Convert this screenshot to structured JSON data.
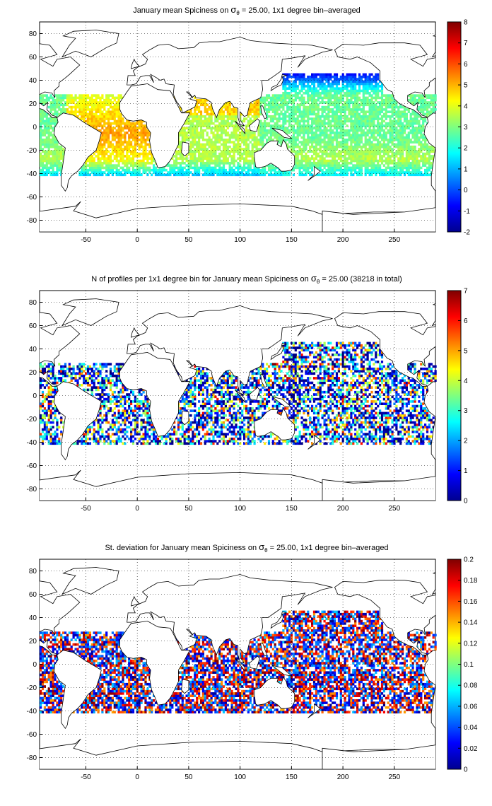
{
  "chart_data": [
    {
      "type": "heatmap",
      "title": "January mean Spiciness on σ_θ = 25.00, 1x1 degree bin–averaged",
      "title_parts": {
        "before": "January mean Spiciness on ",
        "sym": "σ",
        "sub": "θ",
        "after": " = 25.00, 1x1 degree bin–averaged"
      },
      "xlim": [
        -95,
        290
      ],
      "ylim": [
        -90,
        90
      ],
      "xticks": [
        -50,
        0,
        50,
        100,
        150,
        200,
        250
      ],
      "yticks": [
        80,
        60,
        40,
        20,
        0,
        -20,
        -40,
        -60,
        -80
      ],
      "grid": true,
      "colorbar": {
        "min": -2,
        "max": 8,
        "ticks": [
          8,
          7,
          6,
          5,
          4,
          3,
          2,
          1,
          0,
          -1,
          -2
        ]
      }
    },
    {
      "type": "heatmap",
      "title": "N of profiles per 1x1 degree bin for January mean Spiciness on σ_θ = 25.00 (38218 in total)",
      "title_parts": {
        "before": "N of profiles per 1x1 degree bin for January mean Spiciness on ",
        "sym": "σ",
        "sub": "θ",
        "after": " = 25.00 (38218 in total)"
      },
      "total_profiles": 38218,
      "xlim": [
        -95,
        290
      ],
      "ylim": [
        -90,
        90
      ],
      "xticks": [
        -50,
        0,
        50,
        100,
        150,
        200,
        250
      ],
      "yticks": [
        80,
        60,
        40,
        20,
        0,
        -20,
        -40,
        -60,
        -80
      ],
      "grid": true,
      "colorbar": {
        "min": 0,
        "max": 7,
        "ticks": [
          7,
          6,
          5,
          4,
          3,
          2,
          1,
          0
        ]
      }
    },
    {
      "type": "heatmap",
      "title": "St. deviation for January mean Spiciness on σ_θ = 25.00, 1x1 degree bin–averaged",
      "title_parts": {
        "before": "St. deviation for January mean Spiciness on ",
        "sym": "σ",
        "sub": "θ",
        "after": " = 25.00, 1x1 degree bin–averaged"
      },
      "xlim": [
        -95,
        290
      ],
      "ylim": [
        -90,
        90
      ],
      "xticks": [
        -50,
        0,
        50,
        100,
        150,
        200,
        250
      ],
      "yticks": [
        80,
        60,
        40,
        20,
        0,
        -20,
        -40,
        -60,
        -80
      ],
      "grid": true,
      "colorbar": {
        "min": 0,
        "max": 0.2,
        "ticks": [
          0.2,
          0.18,
          0.16,
          0.14,
          0.12,
          0.1,
          0.08,
          0.06,
          0.04,
          0.02,
          0
        ]
      }
    }
  ],
  "colormap": "jet",
  "land_color": "#ffffff",
  "coast_color": "#000000"
}
